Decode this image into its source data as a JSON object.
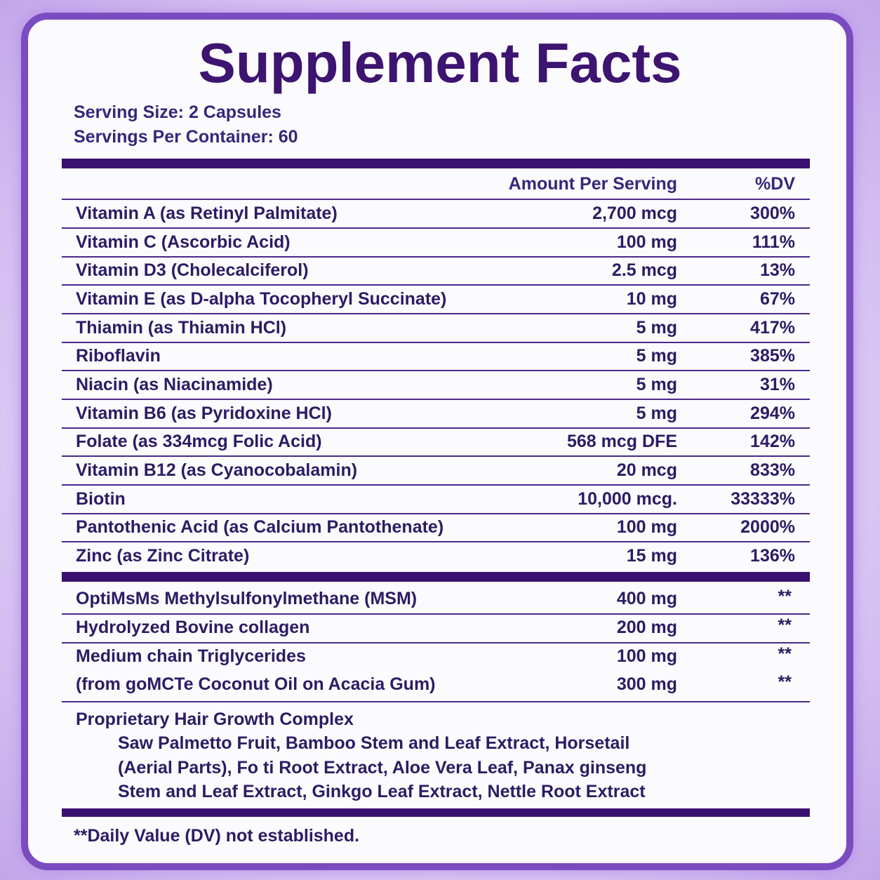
{
  "title": "Supplement Facts",
  "serving_size": "Serving Size: 2 Capsules",
  "servings_per_container": "Servings Per Container: 60",
  "header": {
    "amount": "Amount Per Serving",
    "dv": "%DV"
  },
  "rows": [
    [
      "Vitamin A (as Retinyl Palmitate)",
      "2,700 mcg",
      "300%"
    ],
    [
      "Vitamin C (Ascorbic Acid)",
      "100 mg",
      "111%"
    ],
    [
      "Vitamin D3 (Cholecalciferol)",
      "2.5 mcg",
      "13%"
    ],
    [
      "Vitamin E (as D-alpha Tocopheryl Succinate)",
      "10 mg",
      "67%"
    ],
    [
      "Thiamin (as Thiamin HCl)",
      "5 mg",
      "417%"
    ],
    [
      "Riboflavin",
      "5 mg",
      "385%"
    ],
    [
      "Niacin (as Niacinamide)",
      "5 mg",
      "31%"
    ],
    [
      "Vitamin B6 (as Pyridoxine HCl)",
      "5 mg",
      "294%"
    ],
    [
      "Folate (as 334mcg Folic Acid)",
      "568 mcg DFE",
      "142%"
    ],
    [
      "Vitamin B12 (as Cyanocobalamin)",
      "20 mcg",
      "833%"
    ],
    [
      "Biotin",
      "10,000 mcg.",
      "33333%"
    ],
    [
      "Pantothenic Acid (as Calcium Pantothenate)",
      "100 mg",
      "2000%"
    ],
    [
      "Zinc (as Zinc Citrate)",
      "15 mg",
      "136%"
    ]
  ],
  "other_rows": [
    [
      "OptiMsMs Methylsulfonylmethane (MSM)",
      "400 mg",
      "**"
    ],
    [
      "Hydrolyzed Bovine collagen",
      "200 mg",
      "**"
    ],
    [
      "Medium chain Triglycerides",
      "100 mg",
      "**"
    ],
    [
      "(from goMCTe Coconut Oil on Acacia Gum)",
      "300 mg",
      "**"
    ]
  ],
  "proprietary": {
    "title": "Proprietary Hair Growth Complex",
    "lines": [
      "Saw Palmetto Fruit, Bamboo Stem and Leaf Extract, Horsetail",
      "(Aerial Parts), Fo ti Root Extract, Aloe Vera Leaf, Panax ginseng",
      "Stem and Leaf Extract, Ginkgo Leaf Extract, Nettle Root Extract"
    ]
  },
  "footnote": "**Daily Value (DV) not established."
}
